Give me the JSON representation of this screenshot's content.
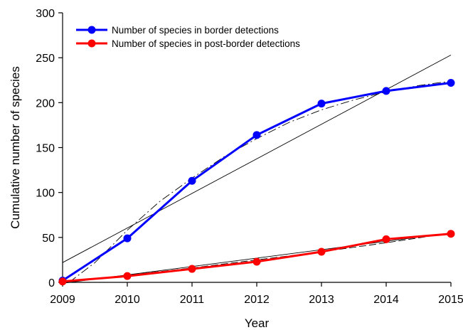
{
  "chart_data": {
    "type": "line",
    "x": [
      2009,
      2010,
      2011,
      2012,
      2013,
      2014,
      2015
    ],
    "series": [
      {
        "name": "Number of species in border detections",
        "color": "#0000ff",
        "values": [
          2,
          49,
          113,
          164,
          199,
          213,
          222
        ]
      },
      {
        "name": "Number of species in post-border detections",
        "color": "#ff0000",
        "values": [
          1,
          7,
          15,
          23,
          34,
          48,
          54
        ]
      }
    ],
    "fit_lines": [
      {
        "style": "linear",
        "for_series": 0,
        "x": [
          2009,
          2015
        ],
        "y": [
          22,
          253
        ]
      },
      {
        "style": "sigmoid",
        "for_series": 0,
        "x": [
          2009.1,
          2009.5,
          2010,
          2010.5,
          2011,
          2011.5,
          2012,
          2012.5,
          2013,
          2013.5,
          2014,
          2014.5,
          2015
        ],
        "y": [
          0,
          22,
          58,
          90,
          116,
          140,
          160,
          178,
          192,
          203,
          212,
          219,
          224
        ]
      },
      {
        "style": "linear",
        "for_series": 1,
        "x": [
          2009,
          2015
        ],
        "y": [
          -1,
          55
        ]
      },
      {
        "style": "curve",
        "for_series": 1,
        "x": [
          2009,
          2010,
          2011,
          2012,
          2013,
          2014,
          2015
        ],
        "y": [
          0,
          8,
          16,
          25,
          34,
          44,
          55
        ]
      }
    ],
    "xlabel": "Year",
    "ylabel": "Cumulative number of species",
    "xlim": [
      2009,
      2015
    ],
    "ylim": [
      0,
      300
    ],
    "xticks": [
      "2009",
      "2010",
      "2011",
      "2012",
      "2013",
      "2014",
      "2015"
    ],
    "yticks": [
      "0",
      "50",
      "100",
      "150",
      "200",
      "250",
      "300"
    ],
    "legend_position": "top-left",
    "grid": false
  }
}
